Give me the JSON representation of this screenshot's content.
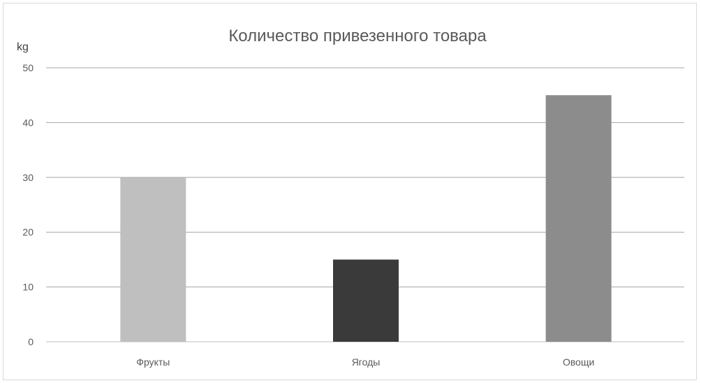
{
  "chart_data": {
    "type": "bar",
    "title": "Количество привезенного товара",
    "ylabel": "kg",
    "xlabel": "",
    "categories": [
      "Фрукты",
      "Ягоды",
      "Овощи"
    ],
    "values": [
      30,
      15,
      45
    ],
    "ylim": [
      0,
      50
    ],
    "yticks": [
      "0",
      "10",
      "20",
      "30",
      "40",
      "50"
    ],
    "grid": true,
    "legend": "none",
    "colors": [
      "#bfbfbf",
      "#3a3a3a",
      "#8c8c8c"
    ]
  }
}
